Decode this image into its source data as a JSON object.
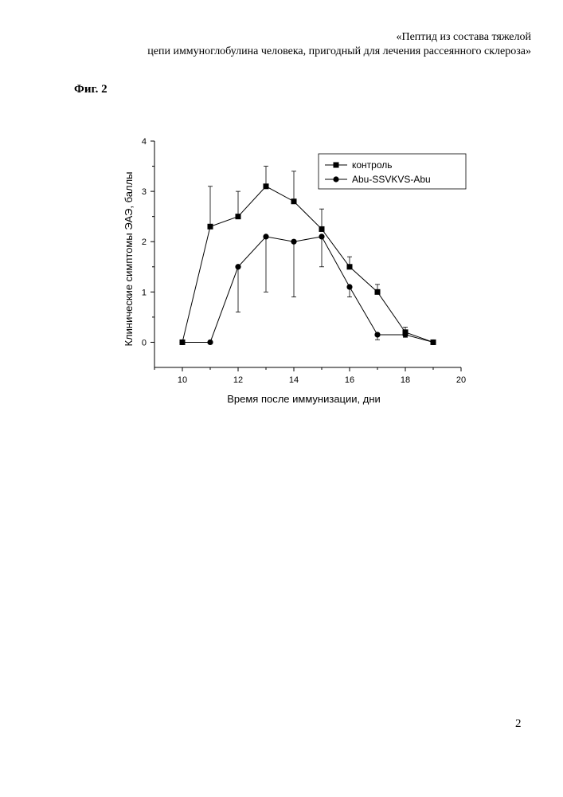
{
  "header": {
    "line1": "«Пептид из состава тяжелой",
    "line2": "цепи иммуноглобулина человека, пригодный для лечения рассеянного склероза»"
  },
  "figure_label": "Фиг. 2",
  "page_number": "2",
  "chart_data": {
    "type": "line",
    "xlabel": "Время после иммунизации, дни",
    "ylabel": "Клинические симптомы ЭАЭ, баллы",
    "xlim": [
      9,
      20
    ],
    "ylim": [
      -0.5,
      4
    ],
    "xticks": [
      10,
      12,
      14,
      16,
      18,
      20
    ],
    "yticks": [
      0,
      1,
      2,
      3,
      4
    ],
    "grid": false,
    "legend_position": "top-right",
    "series": [
      {
        "name": "контроль",
        "marker": "square",
        "x": [
          10,
          11,
          12,
          13,
          14,
          15,
          16,
          17,
          18,
          19
        ],
        "y": [
          0,
          2.3,
          2.5,
          3.1,
          2.8,
          2.25,
          1.5,
          1.0,
          0.2,
          0
        ],
        "error_up": [
          0,
          0.8,
          0.5,
          0.4,
          0.6,
          0.4,
          0.2,
          0.15,
          0.1,
          0
        ],
        "error_down": [
          0,
          0,
          0,
          0,
          0,
          0,
          0,
          0,
          0.1,
          0
        ]
      },
      {
        "name": "Abu-SSVKVS-Abu",
        "marker": "circle",
        "x": [
          10,
          11,
          12,
          13,
          14,
          15,
          16,
          17,
          18,
          19
        ],
        "y": [
          0,
          0,
          1.5,
          2.1,
          2.0,
          2.1,
          1.1,
          0.15,
          0.15,
          0
        ],
        "error_up": [
          0,
          0,
          0,
          0,
          0,
          0,
          0,
          0,
          0,
          0
        ],
        "error_down": [
          0,
          0,
          0.9,
          1.1,
          1.1,
          0.6,
          0.2,
          0.1,
          0.05,
          0
        ]
      }
    ]
  }
}
